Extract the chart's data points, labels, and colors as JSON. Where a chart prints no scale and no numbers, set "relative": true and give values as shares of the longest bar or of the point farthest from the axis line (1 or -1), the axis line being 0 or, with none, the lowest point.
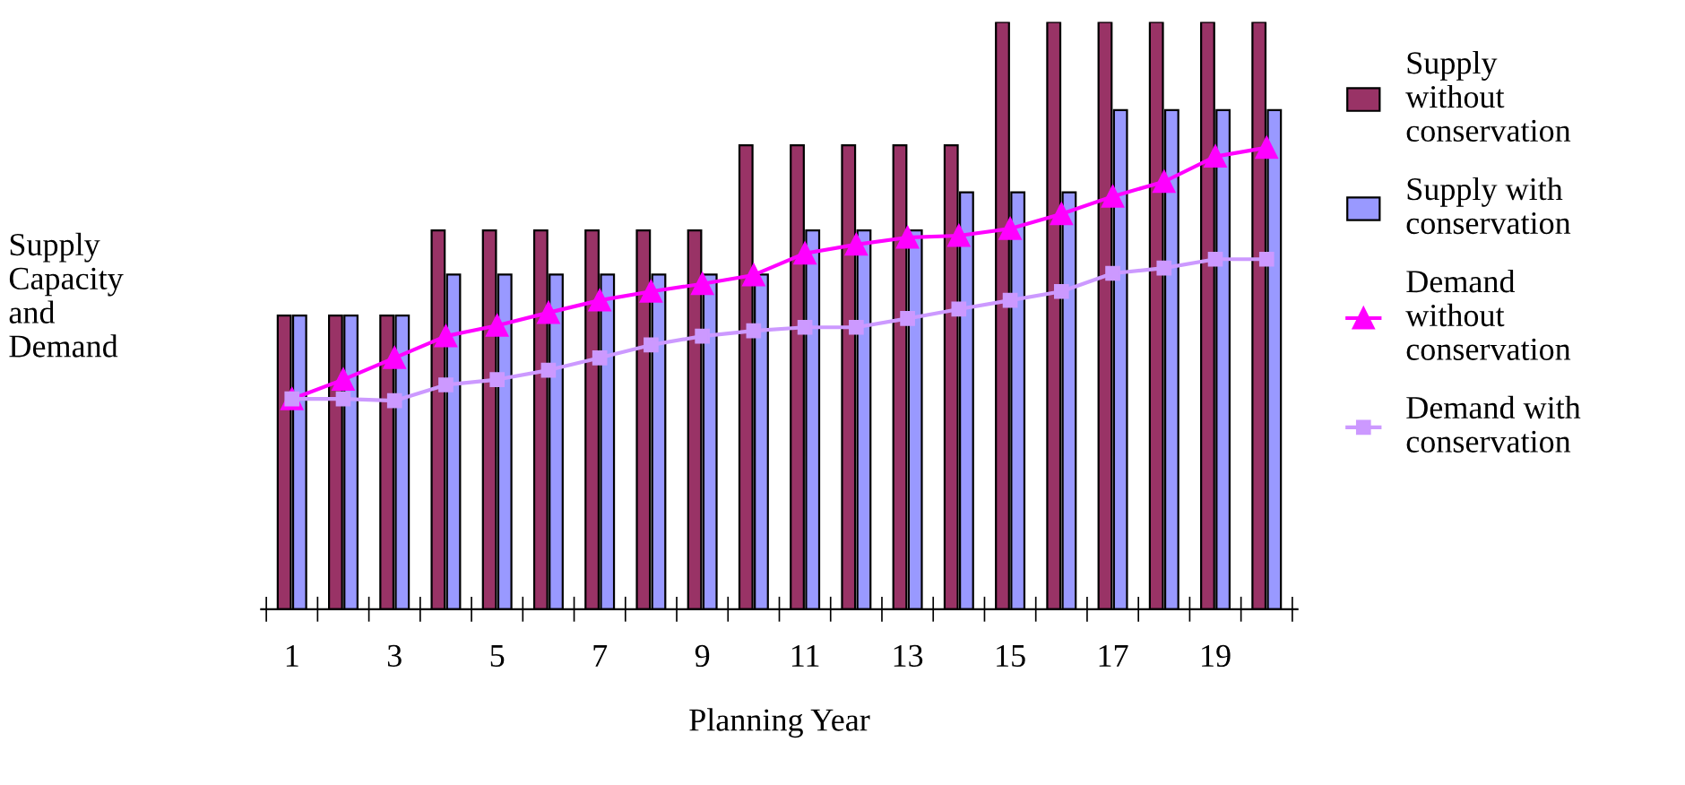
{
  "chart_data": {
    "type": "bar",
    "relative": true,
    "xlabel": "Planning Year",
    "ylabel": "Supply Capacity and Demand",
    "legend": "right",
    "categories": [
      "1",
      null,
      "3",
      null,
      "5",
      null,
      "7",
      null,
      "9",
      null,
      "11",
      null,
      "13",
      null,
      "15",
      null,
      "17",
      null,
      "19",
      null
    ],
    "series": [
      {
        "name": "Supply without conservation",
        "color": "#993366",
        "values": [
          0.5,
          0.5,
          0.5,
          0.645,
          0.645,
          0.645,
          0.645,
          0.645,
          0.645,
          0.79,
          0.79,
          0.79,
          0.79,
          0.79,
          1,
          1,
          1,
          1,
          1,
          1
        ]
      },
      {
        "name": "Supply with conservation",
        "color": "#9999ff",
        "values": [
          0.5,
          0.5,
          0.5,
          0.57,
          0.57,
          0.57,
          0.57,
          0.57,
          0.57,
          0.57,
          0.645,
          0.645,
          0.645,
          0.71,
          0.71,
          0.71,
          0.85,
          0.85,
          0.85,
          0.85
        ]
      },
      {
        "name": "Demand without conservation",
        "type": "line",
        "marker": "triangle",
        "color": "#ff00ff",
        "values": [
          0.358,
          0.391,
          0.428,
          0.465,
          0.483,
          0.505,
          0.526,
          0.541,
          0.554,
          0.569,
          0.606,
          0.621,
          0.633,
          0.636,
          0.648,
          0.673,
          0.703,
          0.728,
          0.771,
          0.786
        ]
      },
      {
        "name": "Demand with conservation",
        "type": "line",
        "marker": "square",
        "color": "#cc99ff",
        "values": [
          0.358,
          0.358,
          0.355,
          0.382,
          0.391,
          0.407,
          0.428,
          0.45,
          0.465,
          0.474,
          0.48,
          0.48,
          0.495,
          0.511,
          0.526,
          0.541,
          0.572,
          0.581,
          0.596,
          0.596
        ]
      }
    ]
  }
}
